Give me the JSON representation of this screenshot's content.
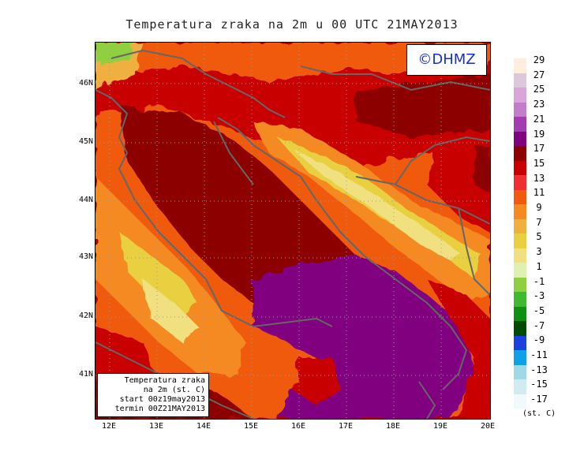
{
  "title": "Temperatura zraka na 2m u 00 UTC 21MAY2013",
  "logo_text": "©DHMZ",
  "latitude_labels": [
    "46N",
    "45N",
    "44N",
    "43N",
    "42N",
    "41N"
  ],
  "longitude_labels": [
    "12E",
    "13E",
    "14E",
    "15E",
    "16E",
    "17E",
    "18E",
    "19E",
    "20E"
  ],
  "info_box": {
    "line1": "Temperatura zraka",
    "line2": "na 2m (st. C)",
    "line3": "start 00z19may2013",
    "line4": "termin 00Z21MAY2013"
  },
  "colorbar": {
    "labels": [
      "29",
      "27",
      "25",
      "23",
      "21",
      "19",
      "17",
      "15",
      "13",
      "11",
      "9",
      "7",
      "5",
      "3",
      "1",
      "-1",
      "-3",
      "-5",
      "-7",
      "-9",
      "-11",
      "-13",
      "-15",
      "-17"
    ],
    "colors": [
      "#fdeee0",
      "#dcc8dc",
      "#d9a6d9",
      "#c27ec8",
      "#a23cb0",
      "#800080",
      "#8c0000",
      "#c80000",
      "#f03030",
      "#f05a10",
      "#f58a20",
      "#f0b040",
      "#e8d040",
      "#f0e080",
      "#e0f0b0",
      "#90d040",
      "#40b830",
      "#109010",
      "#004a00",
      "#1a40e0",
      "#10a0e8",
      "#a0d8e8",
      "#d0ecf0",
      "#f0fafa"
    ],
    "unit": "(st. C)"
  }
}
